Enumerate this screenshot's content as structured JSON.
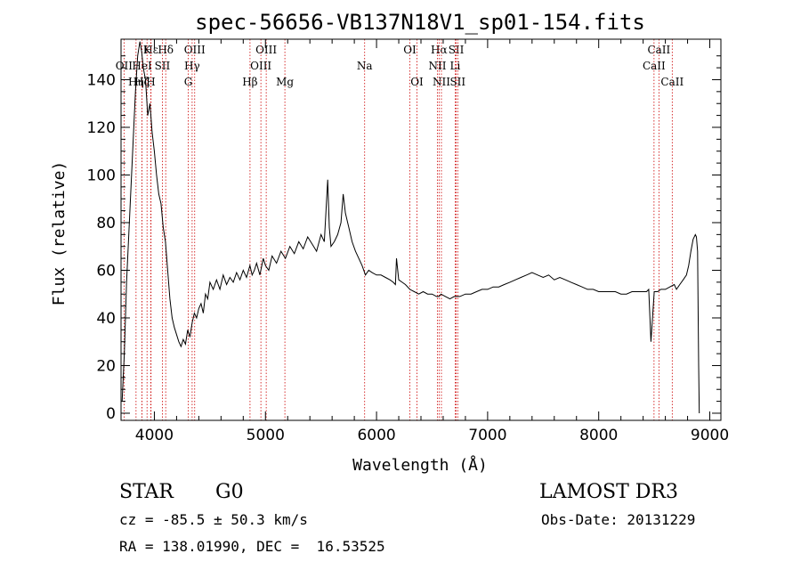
{
  "chart_data": {
    "type": "line",
    "title": "spec-56656-VB137N18V1_sp01-154.fits",
    "xlabel": "Wavelength (Å)",
    "ylabel": "Flux (relative)",
    "xlim": [
      3700,
      9100
    ],
    "ylim": [
      -3,
      157
    ],
    "x_ticks": [
      4000,
      5000,
      6000,
      7000,
      8000,
      9000
    ],
    "y_ticks": [
      0,
      20,
      40,
      60,
      80,
      100,
      120,
      140
    ],
    "grid": false,
    "legend": "none",
    "line_color": "#000000",
    "marker_line_color": "#cc0000",
    "series": [
      {
        "x": [
          3710,
          3730,
          3750,
          3770,
          3790,
          3810,
          3830,
          3850,
          3870,
          3885,
          3900,
          3920,
          3940,
          3960,
          3980,
          4000,
          4020,
          4040,
          4060,
          4080,
          4100,
          4120,
          4140,
          4160,
          4180,
          4200,
          4220,
          4240,
          4260,
          4280,
          4300,
          4320,
          4340,
          4360,
          4380,
          4400,
          4420,
          4440,
          4460,
          4480,
          4500,
          4530,
          4560,
          4590,
          4620,
          4650,
          4680,
          4710,
          4740,
          4770,
          4800,
          4830,
          4860,
          4880,
          4900,
          4920,
          4950,
          4980,
          5000,
          5030,
          5060,
          5100,
          5140,
          5180,
          5220,
          5260,
          5300,
          5340,
          5380,
          5420,
          5460,
          5500,
          5530,
          5560,
          5575,
          5590,
          5620,
          5650,
          5680,
          5700,
          5720,
          5750,
          5780,
          5810,
          5840,
          5870,
          5900,
          5930,
          5960,
          6000,
          6040,
          6080,
          6120,
          6150,
          6170,
          6180,
          6200,
          6230,
          6260,
          6300,
          6340,
          6380,
          6420,
          6460,
          6500,
          6540,
          6563,
          6580,
          6620,
          6660,
          6700,
          6750,
          6800,
          6850,
          6900,
          6950,
          7000,
          7050,
          7100,
          7150,
          7200,
          7250,
          7300,
          7350,
          7400,
          7450,
          7500,
          7550,
          7600,
          7650,
          7700,
          7750,
          7800,
          7850,
          7900,
          7950,
          8000,
          8050,
          8100,
          8150,
          8200,
          8250,
          8300,
          8350,
          8400,
          8430,
          8450,
          8470,
          8500,
          8530,
          8560,
          8600,
          8640,
          8680,
          8700,
          8730,
          8760,
          8790,
          8810,
          8830,
          8850,
          8870,
          8880,
          8890,
          8900,
          8905
        ],
        "y": [
          5,
          25,
          55,
          75,
          95,
          115,
          135,
          150,
          156,
          152,
          145,
          140,
          125,
          130,
          118,
          110,
          100,
          92,
          88,
          78,
          72,
          60,
          48,
          40,
          36,
          33,
          30,
          28,
          31,
          29,
          35,
          32,
          38,
          42,
          40,
          44,
          46,
          42,
          50,
          48,
          55,
          52,
          56,
          52,
          58,
          54,
          57,
          55,
          59,
          56,
          60,
          57,
          62,
          58,
          60,
          63,
          58,
          65,
          62,
          60,
          66,
          63,
          68,
          65,
          70,
          67,
          72,
          69,
          74,
          71,
          68,
          75,
          72,
          98,
          78,
          70,
          72,
          75,
          80,
          92,
          84,
          78,
          72,
          68,
          65,
          62,
          58,
          60,
          59,
          58,
          58,
          57,
          56,
          55,
          54,
          65,
          56,
          55,
          54,
          52,
          51,
          50,
          51,
          50,
          50,
          49,
          49,
          50,
          49,
          48,
          49,
          49,
          50,
          50,
          51,
          52,
          52,
          53,
          53,
          54,
          55,
          56,
          57,
          58,
          59,
          58,
          57,
          58,
          56,
          57,
          56,
          55,
          54,
          53,
          52,
          52,
          51,
          51,
          51,
          51,
          50,
          50,
          51,
          51,
          51,
          51,
          52,
          30,
          51,
          51,
          52,
          52,
          53,
          54,
          52,
          54,
          56,
          58,
          62,
          68,
          73,
          75,
          74,
          68,
          20,
          0
        ]
      }
    ],
    "line_markers": [
      {
        "name": "Hε",
        "x": 3970,
        "row": 0
      },
      {
        "name": "K",
        "x": 3934,
        "row": 0
      },
      {
        "name": "Hδ",
        "x": 4102,
        "row": 0
      },
      {
        "name": "OIII",
        "x": 4363,
        "row": 0
      },
      {
        "name": "OIII",
        "x": 5007,
        "row": 0
      },
      {
        "name": "OI",
        "x": 6300,
        "row": 0
      },
      {
        "name": "Hα",
        "x": 6563,
        "row": 0
      },
      {
        "name": "SII",
        "x": 6717,
        "row": 0
      },
      {
        "name": "CaII",
        "x": 8542,
        "row": 0
      },
      {
        "name": "OII",
        "x": 3727,
        "row": 1
      },
      {
        "name": "HeI",
        "x": 3889,
        "row": 1
      },
      {
        "name": "SII",
        "x": 4072,
        "row": 1
      },
      {
        "name": "Hγ",
        "x": 4340,
        "row": 1
      },
      {
        "name": "OIII",
        "x": 4959,
        "row": 1
      },
      {
        "name": "Na",
        "x": 5893,
        "row": 1
      },
      {
        "name": "NII",
        "x": 6548,
        "row": 1
      },
      {
        "name": "Li",
        "x": 6708,
        "row": 1
      },
      {
        "name": "CaII",
        "x": 8498,
        "row": 1
      },
      {
        "name": "Hη",
        "x": 3835,
        "row": 2
      },
      {
        "name": "Hζ",
        "x": 3889,
        "row": 2
      },
      {
        "name": "H",
        "x": 3968,
        "row": 2
      },
      {
        "name": "G",
        "x": 4305,
        "row": 2
      },
      {
        "name": "Hβ",
        "x": 4861,
        "row": 2
      },
      {
        "name": "Mg",
        "x": 5175,
        "row": 2
      },
      {
        "name": "OI",
        "x": 6364,
        "row": 2
      },
      {
        "name": "NII",
        "x": 6584,
        "row": 2
      },
      {
        "name": "SII",
        "x": 6731,
        "row": 2
      },
      {
        "name": "CaII",
        "x": 8662,
        "row": 2
      }
    ]
  },
  "info": {
    "class": "STAR",
    "subclass": "G0",
    "survey": "LAMOST DR3",
    "redshift": "cz = -85.5 ± 50.3 km/s",
    "obs_date": "Obs-Date: 20131229",
    "coords": "RA = 138.01990, DEC =  16.53525"
  }
}
